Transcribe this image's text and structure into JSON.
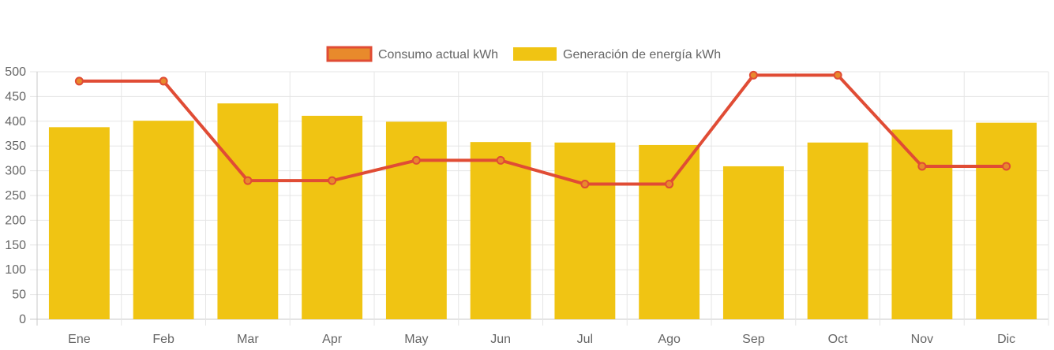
{
  "chart_data": {
    "type": "bar",
    "categories": [
      "Ene",
      "Feb",
      "Mar",
      "Apr",
      "May",
      "Jun",
      "Jul",
      "Ago",
      "Sep",
      "Oct",
      "Nov",
      "Dic"
    ],
    "series": [
      {
        "name": "Consumo actual kWh",
        "type": "line",
        "color": "#e04c35",
        "values": [
          481,
          481,
          280,
          280,
          321,
          321,
          273,
          273,
          493,
          493,
          309,
          309
        ]
      },
      {
        "name": "Generación de energía kWh",
        "type": "bar",
        "color": "#f0c413",
        "values": [
          388,
          401,
          436,
          411,
          399,
          358,
          357,
          352,
          309,
          357,
          383,
          397
        ]
      }
    ],
    "ylim": [
      0,
      500
    ],
    "yticks": [
      0,
      50,
      100,
      150,
      200,
      250,
      300,
      350,
      400,
      450,
      500
    ],
    "grid": true,
    "legend_position": "top-center"
  }
}
